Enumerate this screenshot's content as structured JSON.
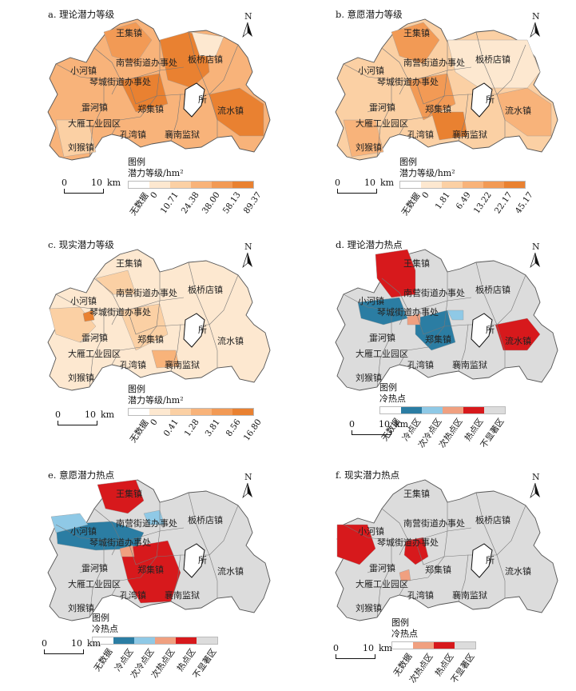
{
  "panels": [
    {
      "id": "a",
      "title": "a. 理论潜力等级",
      "legend_title": "图例",
      "legend_subtitle": "潜力等级/hm²",
      "legend_ticks": [
        "无数据",
        "0",
        "10.71",
        "24.38",
        "38.00",
        "58.13",
        "89.37"
      ],
      "legend_colors": [
        "#ffffff",
        "#fde8d0",
        "#fbd0a4",
        "#f8b37a",
        "#f29a55",
        "#e98131"
      ],
      "labels": [
        "王集镇",
        "南营街道办事处",
        "板桥店镇",
        "小河镇",
        "琴城街道办事处",
        "雷河镇",
        "郑集镇",
        "流水镇",
        "大雁工业园区",
        "所",
        "孔湾镇",
        "襄南监狱",
        "刘猴镇"
      ]
    },
    {
      "id": "b",
      "title": "b. 意愿潜力等级",
      "legend_title": "图例",
      "legend_subtitle": "潜力等级/hm²",
      "legend_ticks": [
        "无数据",
        "0",
        "1.81",
        "6.49",
        "13.22",
        "22.17",
        "45.17"
      ],
      "legend_colors": [
        "#ffffff",
        "#fde8d0",
        "#fbd0a4",
        "#f8b37a",
        "#f29a55",
        "#e98131"
      ],
      "labels": [
        "王集镇",
        "南营街道办事处",
        "板桥店镇",
        "小河镇",
        "琴城街道办事处",
        "雷河镇",
        "郑集镇",
        "流水镇",
        "大雁工业园区",
        "所",
        "孔湾镇",
        "襄南监狱",
        "刘猴镇"
      ]
    },
    {
      "id": "c",
      "title": "c. 现实潜力等级",
      "legend_title": "图例",
      "legend_subtitle": "潜力等级/hm²",
      "legend_ticks": [
        "无数据",
        "0",
        "0.41",
        "1.28",
        "3.81",
        "8.56",
        "16.80"
      ],
      "legend_colors": [
        "#ffffff",
        "#fde8d0",
        "#fbd0a4",
        "#f8b37a",
        "#f29a55",
        "#e98131"
      ],
      "labels": [
        "王集镇",
        "南营街道办事处",
        "板桥店镇",
        "小河镇",
        "琴城街道办事处",
        "雷河镇",
        "郑集镇",
        "流水镇",
        "大雁工业园区",
        "所",
        "孔湾镇",
        "襄南监狱",
        "刘猴镇"
      ]
    },
    {
      "id": "d",
      "title": "d. 理论潜力热点",
      "legend_title": "图例",
      "legend_subtitle": "冷热点",
      "legend_ticks": [
        "无数据",
        "冷点区",
        "次冷点区",
        "次热点区",
        "热点区",
        "不显著区"
      ],
      "legend_colors": [
        "#ffffff",
        "#2b7da3",
        "#8fc9e6",
        "#f0a080",
        "#d7191c",
        "#dcdcdc"
      ],
      "labels": [
        "王集镇",
        "南营街道办事处",
        "板桥店镇",
        "小河镇",
        "琴城街道办事处",
        "雷河镇",
        "郑集镇",
        "流水镇",
        "大雁工业园区",
        "所",
        "孔湾镇",
        "襄南监狱",
        "刘猴镇"
      ]
    },
    {
      "id": "e",
      "title": "e. 意愿潜力热点",
      "legend_title": "图例",
      "legend_subtitle": "冷热点",
      "legend_ticks": [
        "无数据",
        "冷点区",
        "次冷点区",
        "次热点区",
        "热点区",
        "不显著区"
      ],
      "legend_colors": [
        "#ffffff",
        "#2b7da3",
        "#8fc9e6",
        "#f0a080",
        "#d7191c",
        "#dcdcdc"
      ],
      "labels": [
        "王集镇",
        "南营街道办事处",
        "板桥店镇",
        "小河镇",
        "琴城街道办事处",
        "雷河镇",
        "郑集镇",
        "流水镇",
        "大雁工业园区",
        "所",
        "孔湾镇",
        "襄南监狱",
        "刘猴镇"
      ]
    },
    {
      "id": "f",
      "title": "f. 现实潜力热点",
      "legend_title": "图例",
      "legend_subtitle": "冷热点",
      "legend_ticks": [
        "无数据",
        "次热点区",
        "热点区",
        "不显著区"
      ],
      "legend_colors": [
        "#ffffff",
        "#f0a080",
        "#d7191c",
        "#dcdcdc"
      ],
      "labels": [
        "王集镇",
        "南营街道办事处",
        "板桥店镇",
        "小河镇",
        "琴城街道办事处",
        "雷河镇",
        "郑集镇",
        "流水镇",
        "大雁工业园区",
        "所",
        "孔湾镇",
        "襄南监狱",
        "刘猴镇"
      ]
    }
  ],
  "scale": {
    "zero": "0",
    "ten": "10",
    "unit": "km"
  },
  "north": "N"
}
